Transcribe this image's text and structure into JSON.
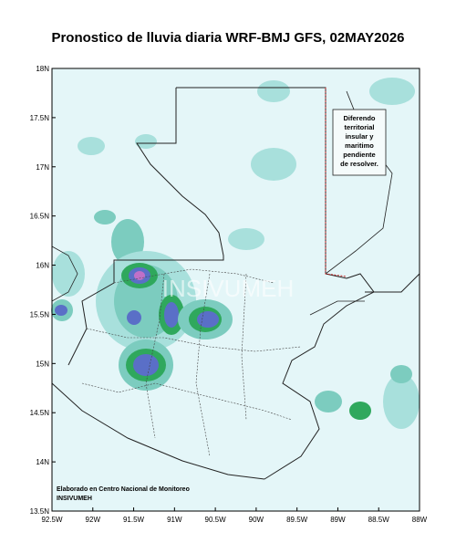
{
  "title": "Pronostico de lluvia diaria WRF-BMJ GFS,  02MAY2026",
  "map": {
    "xlim": [
      -92.5,
      -88
    ],
    "ylim": [
      13.5,
      18
    ],
    "xticks": [
      {
        "value": -92.5,
        "label": "92.5W"
      },
      {
        "value": -92,
        "label": "92W"
      },
      {
        "value": -91.5,
        "label": "91.5W"
      },
      {
        "value": -91,
        "label": "91W"
      },
      {
        "value": -90.5,
        "label": "90.5W"
      },
      {
        "value": -90,
        "label": "90W"
      },
      {
        "value": -89.5,
        "label": "89.5W"
      },
      {
        "value": -89,
        "label": "89W"
      },
      {
        "value": -88.5,
        "label": "88.5W"
      },
      {
        "value": -88,
        "label": "88W"
      }
    ],
    "yticks": [
      {
        "value": 13.5,
        "label": "13.5N"
      },
      {
        "value": 14,
        "label": "14N"
      },
      {
        "value": 14.5,
        "label": "14.5N"
      },
      {
        "value": 15,
        "label": "15N"
      },
      {
        "value": 15.5,
        "label": "15.5N"
      },
      {
        "value": 16,
        "label": "16N"
      },
      {
        "value": 16.5,
        "label": "16.5N"
      },
      {
        "value": 17,
        "label": "17N"
      },
      {
        "value": 17.5,
        "label": "17.5N"
      },
      {
        "value": 18,
        "label": "18N"
      }
    ],
    "note": [
      "Diferendo",
      "territorial",
      "insular y",
      "maritimo",
      "pendiente",
      "de resolver."
    ],
    "credit": [
      "Elaborado en Centro Nacional de Monitoreo",
      "INSIVUMEH"
    ],
    "watermark": "INSIVUMEH"
  }
}
